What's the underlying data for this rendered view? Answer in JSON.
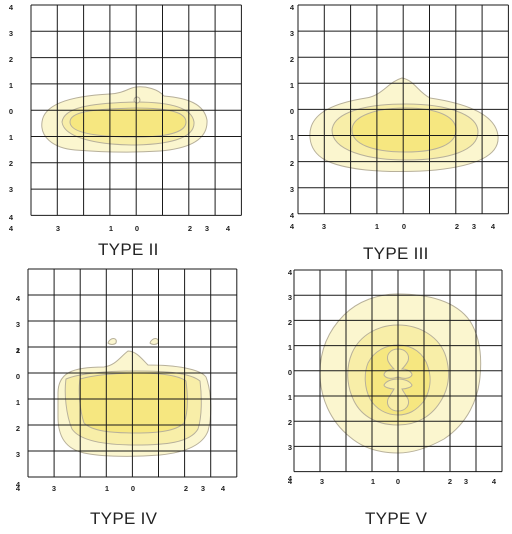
{
  "panels": [
    {
      "title": "TYPE II",
      "y_labels": [
        "4",
        "3",
        "2",
        "1",
        "0",
        "1",
        "2",
        "3",
        "4"
      ],
      "x_labels": [
        "4",
        "3",
        "1",
        "0",
        "2",
        "3",
        "4"
      ]
    },
    {
      "title": "TYPE III",
      "y_labels": [
        "4",
        "3",
        "2",
        "1",
        "0",
        "1",
        "2",
        "3",
        "4"
      ],
      "x_labels": [
        "4",
        "3",
        "1",
        "0",
        "2",
        "3",
        "4"
      ]
    },
    {
      "title": "TYPE IV",
      "y_labels": [
        "4",
        "3",
        "2",
        "1",
        "0",
        "1",
        "2",
        "3",
        "4"
      ],
      "x_labels": [
        "4",
        "3",
        "1",
        "0",
        "2",
        "3",
        "4"
      ]
    },
    {
      "title": "TYPE V",
      "y_labels": [
        "4",
        "3",
        "2",
        "1",
        "0",
        "1",
        "2",
        "3",
        "4"
      ],
      "x_labels": [
        "4",
        "3",
        "1",
        "0",
        "2",
        "3",
        "4"
      ]
    }
  ],
  "colors": {
    "outer_fill": "#FBF6CF",
    "mid_fill": "#F8EEA8",
    "inner_fill": "#F6E780",
    "contour_stroke": "#B7B09A",
    "grid": "#1a1a1a"
  }
}
